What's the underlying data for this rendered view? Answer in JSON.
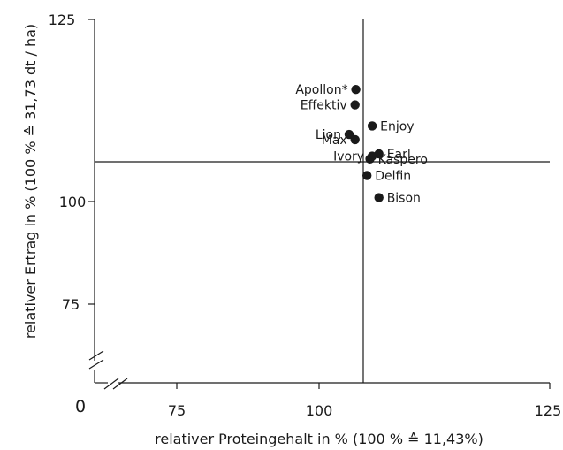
{
  "chart_data": {
    "type": "scatter",
    "xlabel": "relativer Proteingehalt in % (100 % ≙ 11,43%)",
    "ylabel": "relativer Ertrag in % (100 % ≙  31,73 dt / ha)",
    "origin_label": "0",
    "xlim": [
      75,
      125
    ],
    "ylim": [
      75,
      125
    ],
    "x_ticks": [
      "75",
      "100",
      "125"
    ],
    "y_ticks": [
      "75",
      "100",
      "125"
    ],
    "reference_lines": {
      "x": 100,
      "y": 100
    },
    "axis_breaks": true,
    "grid": false,
    "points": [
      {
        "label": "Apollon*",
        "x": 99.0,
        "y": 112.7,
        "label_side": "left"
      },
      {
        "label": "Effektiv",
        "x": 98.9,
        "y": 110.0,
        "label_side": "left"
      },
      {
        "label": "Lion",
        "x": 98.1,
        "y": 104.8,
        "label_side": "left"
      },
      {
        "label": "Max",
        "x": 98.9,
        "y": 103.9,
        "label_side": "left"
      },
      {
        "label": "Enjoy",
        "x": 101.2,
        "y": 106.3,
        "label_side": "right"
      },
      {
        "label": "Earl",
        "x": 102.1,
        "y": 101.4,
        "label_side": "right"
      },
      {
        "label": "Ivory",
        "x": 101.2,
        "y": 101.0,
        "label_side": "left"
      },
      {
        "label": "Kaspero",
        "x": 100.9,
        "y": 100.5,
        "label_side": "right"
      },
      {
        "label": "Delfin",
        "x": 100.5,
        "y": 97.6,
        "label_side": "right"
      },
      {
        "label": "Bison",
        "x": 102.1,
        "y": 93.7,
        "label_side": "right"
      }
    ]
  }
}
